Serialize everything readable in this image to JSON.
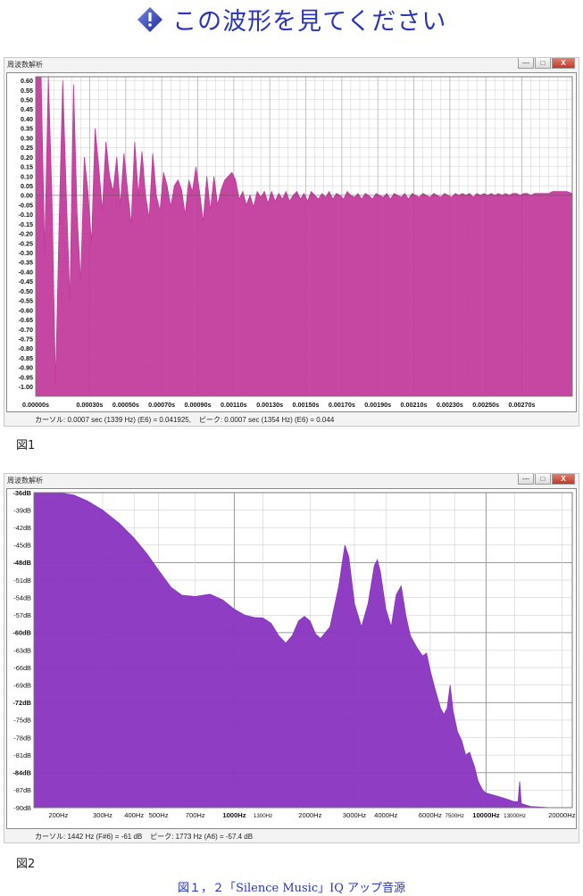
{
  "page_title": "この波形を見てください",
  "charts": [
    {
      "window_title": "周波数解析",
      "window_buttons": [
        "—",
        "□",
        "X"
      ],
      "status_text": "カーソル: 0.0007 sec (1339 Hz) (E6) = 0.041925,    ピーク: 0.0007 sec (1354 Hz) (E6) = 0.044",
      "figure_label": "図1",
      "fill_color": "#c2399a"
    },
    {
      "window_title": "周波数解析",
      "window_buttons": [
        "—",
        "□",
        "X"
      ],
      "status_text": "カーソル: 1442 Hz (F#6) = -61 dB    ピーク: 1773 Hz (A6) = -57.4 dB",
      "figure_label": "図2",
      "fill_color": "#8a35c0"
    }
  ],
  "caption": "図１，２「Silence Music」IQ アップ音源",
  "chart_data": [
    {
      "type": "area",
      "xlabel": "",
      "ylabel": "",
      "xlim": [
        0,
        0.00298
      ],
      "ylim": [
        -1.05,
        0.62
      ],
      "y_ticks": [
        "0.60",
        "0.55",
        "0.50",
        "0.45",
        "0.40",
        "0.35",
        "0.30",
        "0.25",
        "0.20",
        "0.15",
        "0.10",
        "0.05",
        "0.00",
        "-0.05",
        "-0.10",
        "-0.15",
        "-0.20",
        "-0.25",
        "-0.30",
        "-0.35",
        "-0.40",
        "-0.45",
        "-0.50",
        "-0.55",
        "-0.60",
        "-0.65",
        "-0.70",
        "-0.75",
        "-0.80",
        "-0.85",
        "-0.90",
        "-0.95",
        "-1.00"
      ],
      "x_ticks": [
        "0.00000s",
        "0.00030s",
        "0.00050s",
        "0.00070s",
        "0.00090s",
        "0.00110s",
        "0.00130s",
        "0.00150s",
        "0.00170s",
        "0.00190s",
        "0.00210s",
        "0.00230s",
        "0.00250s",
        "0.00270s"
      ],
      "x_tick_values": [
        0.0,
        0.0003,
        0.0005,
        0.0007,
        0.0009,
        0.0011,
        0.0013,
        0.0015,
        0.0017,
        0.0019,
        0.0021,
        0.0023,
        0.0025,
        0.0027
      ],
      "grid": true,
      "legend": "none",
      "points": [
        [
          0.0,
          0.62
        ],
        [
          3e-05,
          0.62
        ],
        [
          5e-05,
          -0.3
        ],
        [
          7e-05,
          0.62
        ],
        [
          9e-05,
          0.0
        ],
        [
          0.00011,
          -0.98
        ],
        [
          0.00013,
          -0.15
        ],
        [
          0.00015,
          0.6
        ],
        [
          0.00017,
          0.0
        ],
        [
          0.00019,
          -0.55
        ],
        [
          0.00021,
          0.58
        ],
        [
          0.00023,
          -0.1
        ],
        [
          0.00025,
          -0.45
        ],
        [
          0.00027,
          0.2
        ],
        [
          0.00029,
          0.02
        ],
        [
          0.00031,
          -0.25
        ],
        [
          0.00033,
          0.35
        ],
        [
          0.00035,
          0.15
        ],
        [
          0.00037,
          -0.08
        ],
        [
          0.00039,
          0.28
        ],
        [
          0.00041,
          0.1
        ],
        [
          0.00043,
          0.02
        ],
        [
          0.00045,
          0.2
        ],
        [
          0.00047,
          -0.05
        ],
        [
          0.00049,
          0.22
        ],
        [
          0.00051,
          0.03
        ],
        [
          0.00053,
          -0.15
        ],
        [
          0.00055,
          0.28
        ],
        [
          0.00057,
          0.0
        ],
        [
          0.00059,
          0.23
        ],
        [
          0.00061,
          0.0
        ],
        [
          0.00063,
          -0.12
        ],
        [
          0.00065,
          0.22
        ],
        [
          0.00067,
          0.0
        ],
        [
          0.00069,
          -0.08
        ],
        [
          0.00071,
          0.12
        ],
        [
          0.00073,
          0.05
        ],
        [
          0.00075,
          -0.06
        ],
        [
          0.00077,
          0.05
        ],
        [
          0.00079,
          0.08
        ],
        [
          0.00081,
          0.03
        ],
        [
          0.00083,
          -0.1
        ],
        [
          0.00085,
          0.08
        ],
        [
          0.00087,
          0.02
        ],
        [
          0.00089,
          0.15
        ],
        [
          0.00091,
          0.02
        ],
        [
          0.00093,
          -0.14
        ],
        [
          0.00095,
          0.1
        ],
        [
          0.00097,
          -0.08
        ],
        [
          0.00099,
          0.1
        ],
        [
          0.00101,
          -0.05
        ],
        [
          0.00103,
          0.03
        ],
        [
          0.00105,
          0.08
        ],
        [
          0.00107,
          0.1
        ],
        [
          0.00109,
          0.12
        ],
        [
          0.00111,
          0.08
        ],
        [
          0.00113,
          -0.02
        ],
        [
          0.00115,
          0.02
        ],
        [
          0.00117,
          -0.05
        ],
        [
          0.00119,
          0.0
        ],
        [
          0.00121,
          -0.06
        ],
        [
          0.00123,
          0.02
        ],
        [
          0.00125,
          -0.01
        ],
        [
          0.00127,
          0.02
        ],
        [
          0.00129,
          -0.04
        ],
        [
          0.00131,
          0.02
        ],
        [
          0.00133,
          -0.03
        ],
        [
          0.00135,
          0.01
        ],
        [
          0.00137,
          -0.02
        ],
        [
          0.00139,
          0.02
        ],
        [
          0.00141,
          -0.03
        ],
        [
          0.00143,
          0.0
        ],
        [
          0.00145,
          0.02
        ],
        [
          0.00147,
          -0.02
        ],
        [
          0.00149,
          0.01
        ],
        [
          0.00151,
          -0.03
        ],
        [
          0.00153,
          0.02
        ],
        [
          0.00155,
          0.0
        ],
        [
          0.00157,
          -0.02
        ],
        [
          0.00159,
          0.01
        ],
        [
          0.00161,
          -0.01
        ],
        [
          0.00163,
          0.02
        ],
        [
          0.00165,
          -0.02
        ],
        [
          0.00167,
          0.01
        ],
        [
          0.00169,
          0.0
        ],
        [
          0.00171,
          -0.02
        ],
        [
          0.00173,
          0.02
        ],
        [
          0.00175,
          0.0
        ],
        [
          0.00177,
          -0.01
        ],
        [
          0.00179,
          0.01
        ],
        [
          0.00181,
          -0.02
        ],
        [
          0.00183,
          0.01
        ],
        [
          0.00185,
          0.0
        ],
        [
          0.00187,
          -0.02
        ],
        [
          0.00189,
          0.01
        ],
        [
          0.00191,
          0.0
        ],
        [
          0.00193,
          -0.01
        ],
        [
          0.00195,
          0.01
        ],
        [
          0.00197,
          -0.02
        ],
        [
          0.00199,
          0.01
        ],
        [
          0.00201,
          0.0
        ],
        [
          0.00203,
          -0.01
        ],
        [
          0.00205,
          0.01
        ],
        [
          0.00207,
          -0.02
        ],
        [
          0.00209,
          0.01
        ],
        [
          0.00211,
          0.0
        ],
        [
          0.00213,
          -0.01
        ],
        [
          0.00215,
          0.01
        ],
        [
          0.00217,
          0.0
        ],
        [
          0.00219,
          -0.01
        ],
        [
          0.00221,
          0.01
        ],
        [
          0.00223,
          0.0
        ],
        [
          0.00225,
          -0.01
        ],
        [
          0.00227,
          0.01
        ],
        [
          0.00229,
          0.0
        ],
        [
          0.00231,
          -0.01
        ],
        [
          0.00233,
          0.01
        ],
        [
          0.00235,
          0.0
        ],
        [
          0.00237,
          0.01
        ],
        [
          0.00239,
          0.0
        ],
        [
          0.00241,
          0.01
        ],
        [
          0.00243,
          -0.01
        ],
        [
          0.00245,
          0.01
        ],
        [
          0.00247,
          0.0
        ],
        [
          0.00249,
          0.01
        ],
        [
          0.00251,
          0.0
        ],
        [
          0.00253,
          0.01
        ],
        [
          0.00255,
          0.0
        ],
        [
          0.00257,
          0.01
        ],
        [
          0.00259,
          0.0
        ],
        [
          0.00261,
          0.01
        ],
        [
          0.00263,
          0.0
        ],
        [
          0.00265,
          0.01
        ],
        [
          0.00267,
          0.01
        ],
        [
          0.00269,
          0.0
        ],
        [
          0.00271,
          0.01
        ],
        [
          0.00273,
          0.01
        ],
        [
          0.00275,
          0.0
        ],
        [
          0.00277,
          0.01
        ],
        [
          0.00279,
          0.01
        ],
        [
          0.00281,
          0.01
        ],
        [
          0.00283,
          0.01
        ],
        [
          0.00285,
          0.01
        ],
        [
          0.00287,
          0.02
        ],
        [
          0.00289,
          0.02
        ],
        [
          0.00291,
          0.02
        ],
        [
          0.00293,
          0.02
        ],
        [
          0.00295,
          0.02
        ],
        [
          0.00298,
          0.01
        ]
      ]
    },
    {
      "type": "area",
      "xlabel": "",
      "ylabel": "",
      "x_scale": "log",
      "xlim": [
        160,
        22000
      ],
      "ylim": [
        -90,
        -36
      ],
      "y_ticks": [
        "-36dB",
        "-39dB",
        "-42dB",
        "-45dB",
        "-48dB",
        "-51dB",
        "-54dB",
        "-57dB",
        "-60dB",
        "-63dB",
        "-66dB",
        "-69dB",
        "-72dB",
        "-75dB",
        "-78dB",
        "-81dB",
        "-84dB",
        "-87dB",
        "-90dB"
      ],
      "y_tick_values": [
        -36,
        -39,
        -42,
        -45,
        -48,
        -51,
        -54,
        -57,
        -60,
        -63,
        -66,
        -69,
        -72,
        -75,
        -78,
        -81,
        -84,
        -87,
        -90
      ],
      "y_bold_ticks": [
        "-36dB",
        "-48dB",
        "-60dB",
        "-72dB",
        "-84dB"
      ],
      "x_ticks": [
        "200Hz",
        "300Hz",
        "400Hz",
        "500Hz",
        "700Hz",
        "1000Hz",
        "1300Hz",
        "2000Hz",
        "3000Hz",
        "4000Hz",
        "6000Hz",
        "7500Hz",
        "10000Hz",
        "13000Hz",
        "20000Hz"
      ],
      "x_tick_values": [
        200,
        300,
        400,
        500,
        700,
        1000,
        1300,
        2000,
        3000,
        4000,
        6000,
        7500,
        10000,
        13000,
        20000
      ],
      "x_bold_ticks": [
        "1000Hz",
        "10000Hz"
      ],
      "x_small_ticks": [
        "1300Hz",
        "7500Hz",
        "13000Hz"
      ],
      "grid": true,
      "legend": "none",
      "points": [
        [
          160,
          -36.0
        ],
        [
          200,
          -36.0
        ],
        [
          230,
          -36.4
        ],
        [
          260,
          -37.4
        ],
        [
          300,
          -39.0
        ],
        [
          350,
          -41.3
        ],
        [
          400,
          -43.8
        ],
        [
          450,
          -46.5
        ],
        [
          500,
          -49.3
        ],
        [
          560,
          -52.2
        ],
        [
          620,
          -53.6
        ],
        [
          700,
          -53.8
        ],
        [
          800,
          -53.4
        ],
        [
          900,
          -54.4
        ],
        [
          1000,
          -56.0
        ],
        [
          1100,
          -57.0
        ],
        [
          1200,
          -57.4
        ],
        [
          1300,
          -57.5
        ],
        [
          1400,
          -58.4
        ],
        [
          1500,
          -60.5
        ],
        [
          1600,
          -61.8
        ],
        [
          1700,
          -60.5
        ],
        [
          1800,
          -58.0
        ],
        [
          1900,
          -57.2
        ],
        [
          2000,
          -58.0
        ],
        [
          2100,
          -60.2
        ],
        [
          2200,
          -61.0
        ],
        [
          2400,
          -59.0
        ],
        [
          2600,
          -52.0
        ],
        [
          2750,
          -45.0
        ],
        [
          2850,
          -47.0
        ],
        [
          3000,
          -55.0
        ],
        [
          3200,
          -59.0
        ],
        [
          3400,
          -55.0
        ],
        [
          3600,
          -48.5
        ],
        [
          3700,
          -47.5
        ],
        [
          3800,
          -49.5
        ],
        [
          4000,
          -56.0
        ],
        [
          4200,
          -59.0
        ],
        [
          4400,
          -53.5
        ],
        [
          4600,
          -52.0
        ],
        [
          4800,
          -57.0
        ],
        [
          5000,
          -60.5
        ],
        [
          5300,
          -62.5
        ],
        [
          5600,
          -64.0
        ],
        [
          5800,
          -63.5
        ],
        [
          6000,
          -66.5
        ],
        [
          6300,
          -70.0
        ],
        [
          6600,
          -73.0
        ],
        [
          6800,
          -74.0
        ],
        [
          7000,
          -73.0
        ],
        [
          7200,
          -69.0
        ],
        [
          7400,
          -73.5
        ],
        [
          7700,
          -77.0
        ],
        [
          8000,
          -78.5
        ],
        [
          8300,
          -81.0
        ],
        [
          8600,
          -80.5
        ],
        [
          9000,
          -83.0
        ],
        [
          9300,
          -85.5
        ],
        [
          9700,
          -87.0
        ],
        [
          10000,
          -87.5
        ],
        [
          11000,
          -88.0
        ],
        [
          12000,
          -88.5
        ],
        [
          13000,
          -89.0
        ],
        [
          13400,
          -89.0
        ],
        [
          13600,
          -85.5
        ],
        [
          13800,
          -89.3
        ],
        [
          15000,
          -89.8
        ],
        [
          18000,
          -90.0
        ],
        [
          22000,
          -90.0
        ]
      ]
    }
  ]
}
